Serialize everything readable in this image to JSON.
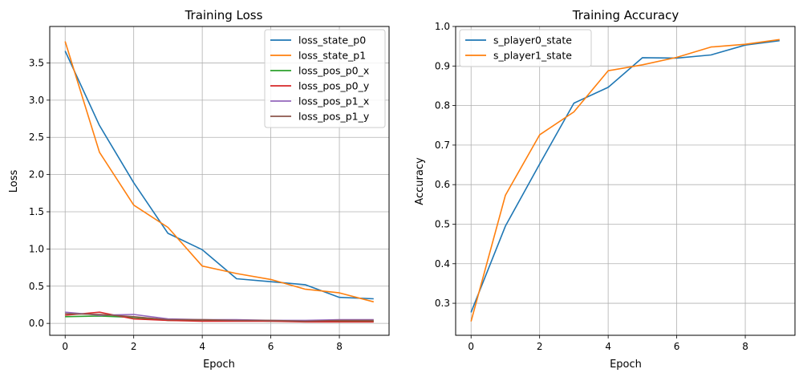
{
  "chart_data": [
    {
      "type": "line",
      "title": "Training Loss",
      "xlabel": "Epoch",
      "ylabel": "Loss",
      "x": [
        0,
        1,
        2,
        3,
        4,
        5,
        6,
        7,
        8,
        9
      ],
      "xlim": [
        -0.45,
        9.45
      ],
      "ylim": [
        -0.16,
        3.99
      ],
      "xticks": [
        0,
        2,
        4,
        6,
        8
      ],
      "yticks": [
        0.0,
        0.5,
        1.0,
        1.5,
        2.0,
        2.5,
        3.0,
        3.5
      ],
      "ytick_labels": [
        "0.0",
        "0.5",
        "1.0",
        "1.5",
        "2.0",
        "2.5",
        "3.0",
        "3.5"
      ],
      "grid": true,
      "legend": "top-right",
      "series": [
        {
          "name": "loss_state_p0",
          "color": "#1f77b4",
          "values": [
            3.66,
            2.66,
            1.89,
            1.21,
            0.99,
            0.6,
            0.56,
            0.52,
            0.35,
            0.33
          ]
        },
        {
          "name": "loss_state_p1",
          "color": "#ff7f0e",
          "values": [
            3.79,
            2.3,
            1.59,
            1.29,
            0.77,
            0.67,
            0.59,
            0.46,
            0.41,
            0.29
          ]
        },
        {
          "name": "loss_pos_p0_x",
          "color": "#2ca02c",
          "values": [
            0.09,
            0.1,
            0.08,
            0.04,
            0.04,
            0.04,
            0.03,
            0.03,
            0.03,
            0.03
          ]
        },
        {
          "name": "loss_pos_p0_y",
          "color": "#d62728",
          "values": [
            0.11,
            0.15,
            0.06,
            0.04,
            0.03,
            0.03,
            0.03,
            0.02,
            0.02,
            0.02
          ]
        },
        {
          "name": "loss_pos_p1_x",
          "color": "#9467bd",
          "values": [
            0.15,
            0.11,
            0.12,
            0.06,
            0.05,
            0.05,
            0.04,
            0.04,
            0.05,
            0.05
          ]
        },
        {
          "name": "loss_pos_p1_y",
          "color": "#8c564b",
          "values": [
            0.13,
            0.12,
            0.09,
            0.05,
            0.05,
            0.04,
            0.04,
            0.03,
            0.04,
            0.04
          ]
        }
      ]
    },
    {
      "type": "line",
      "title": "Training Accuracy",
      "xlabel": "Epoch",
      "ylabel": "Accuracy",
      "x": [
        0,
        1,
        2,
        3,
        4,
        5,
        6,
        7,
        8,
        9
      ],
      "xlim": [
        -0.45,
        9.45
      ],
      "ylim": [
        0.219,
        1.0
      ],
      "xticks": [
        0,
        2,
        4,
        6,
        8
      ],
      "yticks": [
        0.3,
        0.4,
        0.5,
        0.6,
        0.7,
        0.8,
        0.9,
        1.0
      ],
      "ytick_labels": [
        "0.3",
        "0.4",
        "0.5",
        "0.6",
        "0.7",
        "0.8",
        "0.9",
        "1.0"
      ],
      "grid": true,
      "legend": "top-left",
      "series": [
        {
          "name": "s_player0_state",
          "color": "#1f77b4",
          "values": [
            0.277,
            0.495,
            0.652,
            0.806,
            0.846,
            0.921,
            0.92,
            0.928,
            0.953,
            0.964
          ]
        },
        {
          "name": "s_player1_state",
          "color": "#ff7f0e",
          "values": [
            0.254,
            0.573,
            0.726,
            0.784,
            0.888,
            0.903,
            0.922,
            0.948,
            0.955,
            0.967
          ]
        }
      ]
    }
  ]
}
